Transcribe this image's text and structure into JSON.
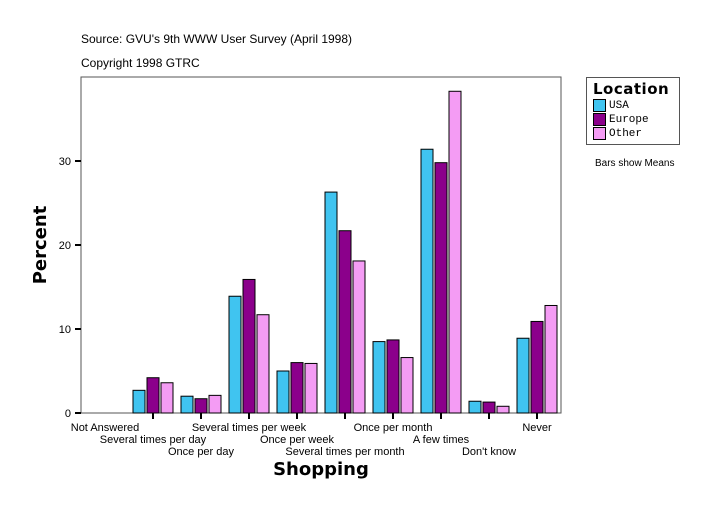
{
  "source": "Source: GVU's 9th WWW User Survey (April 1998)",
  "copyright": "Copyright 1998 GTRC",
  "note": "Bars show Means",
  "chart_data": {
    "type": "bar",
    "title": "",
    "xlabel": "Shopping",
    "ylabel": "Percent",
    "ylim": [
      0,
      40
    ],
    "yticks": [
      0,
      10,
      20,
      30
    ],
    "grid": false,
    "legend_title": "Location",
    "legend_position": "right",
    "categories": [
      "Not Answered",
      "Several times per day",
      "Once per day",
      "Several times per week",
      "Once per week",
      "Several times per month",
      "Once per month",
      "A few times",
      "Don't know",
      "Never"
    ],
    "series": [
      {
        "name": "USA",
        "color": "#40C4F0",
        "values": [
          0,
          2.7,
          2.0,
          13.9,
          5.0,
          26.3,
          8.5,
          31.4,
          1.4,
          8.9
        ]
      },
      {
        "name": "Europe",
        "color": "#8B008B",
        "values": [
          0,
          4.2,
          1.7,
          15.9,
          6.0,
          21.7,
          8.7,
          29.8,
          1.3,
          10.9
        ]
      },
      {
        "name": "Other",
        "color": "#F49CF4",
        "values": [
          0,
          3.6,
          2.1,
          11.7,
          5.9,
          18.1,
          6.6,
          38.3,
          0.8,
          12.8
        ]
      }
    ]
  }
}
